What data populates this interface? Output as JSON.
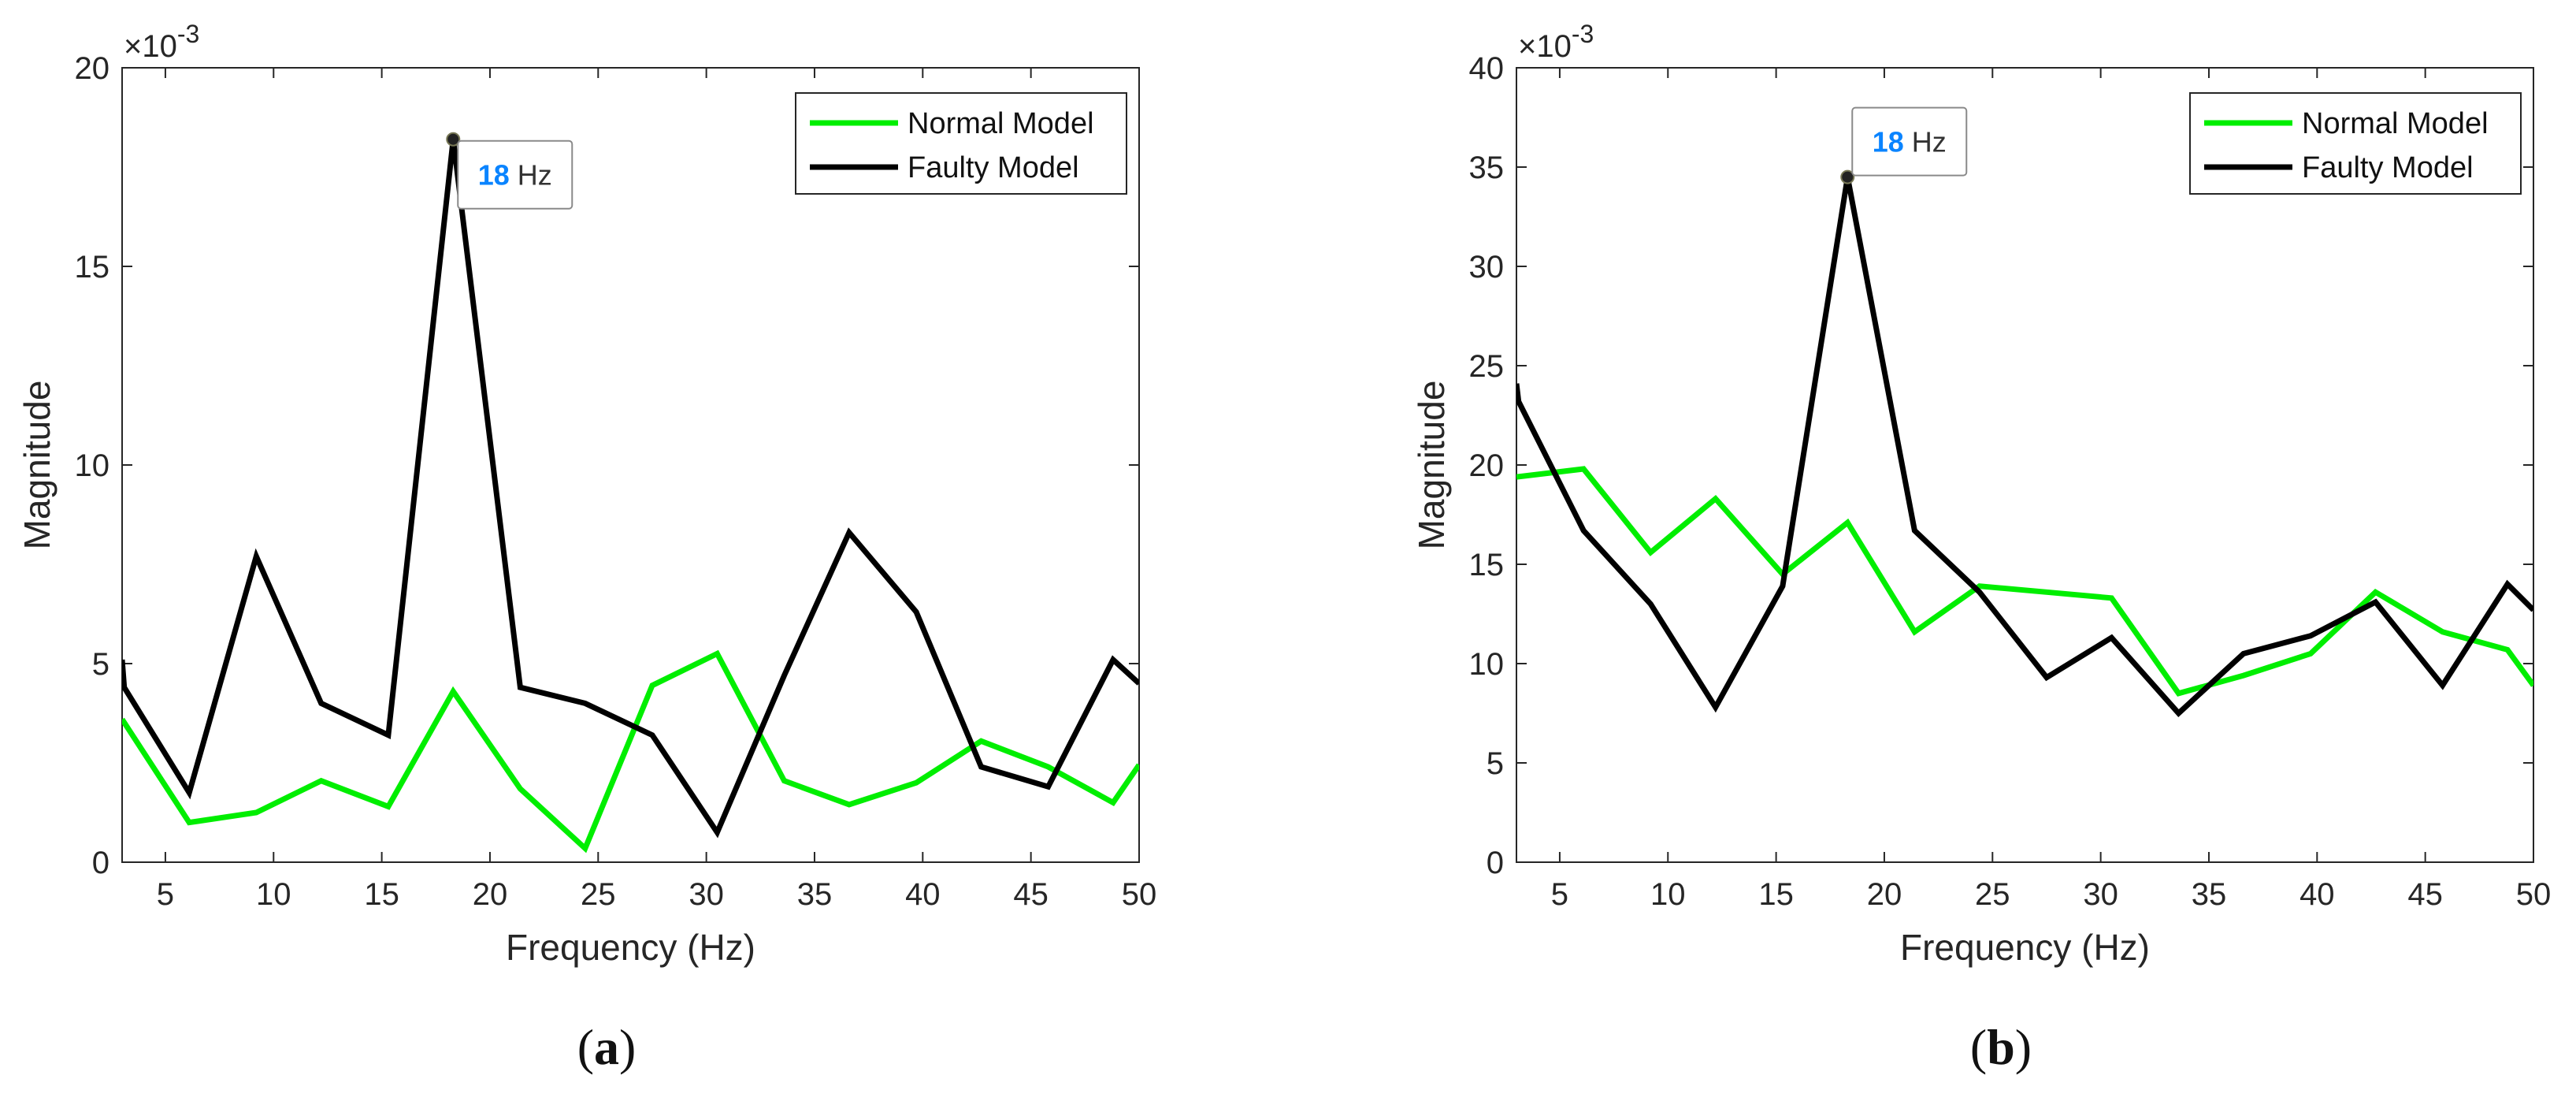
{
  "colors": {
    "normal": "#00ee00",
    "faulty": "#000000",
    "axis": "#262626",
    "tip_value": "#0a84ff"
  },
  "chart_data": [
    {
      "type": "line",
      "panel_label": "a",
      "xlabel": "Frequency (Hz)",
      "ylabel": "Magnitude",
      "exponent_base": "×10",
      "exponent_power": "-3",
      "xlim": [
        3,
        50
      ],
      "ylim": [
        0,
        20
      ],
      "xticks": [
        5,
        10,
        15,
        20,
        25,
        30,
        35,
        40,
        45,
        50
      ],
      "yticks": [
        0,
        5,
        10,
        15,
        20
      ],
      "legend_position": "top-right",
      "series": [
        {
          "name": "Normal Model",
          "color_key": "normal",
          "x": [
            3,
            6.1,
            9.2,
            12.2,
            15.3,
            18.3,
            21.4,
            24.4,
            27.5,
            30.5,
            33.6,
            36.6,
            39.7,
            42.7,
            45.8,
            48.8,
            50
          ],
          "y": [
            3.6,
            1.0,
            1.25,
            2.05,
            1.4,
            4.3,
            1.85,
            0.35,
            4.45,
            5.25,
            2.05,
            1.45,
            2.0,
            3.05,
            2.4,
            1.5,
            2.45
          ]
        },
        {
          "name": "Faulty Model",
          "color_key": "faulty",
          "x": [
            3,
            3.1,
            6.1,
            9.2,
            12.2,
            15.3,
            18.3,
            21.4,
            24.4,
            27.5,
            30.5,
            33.6,
            36.6,
            39.7,
            42.7,
            45.8,
            48.8,
            50
          ],
          "y": [
            5.1,
            4.4,
            1.75,
            7.7,
            4.0,
            3.2,
            18.2,
            4.4,
            4.0,
            3.2,
            0.75,
            4.7,
            8.3,
            6.3,
            2.4,
            1.9,
            5.1,
            4.5
          ]
        }
      ],
      "annotation": {
        "x": 18.3,
        "y": 18.2,
        "value": "18",
        "unit": "Hz"
      }
    },
    {
      "type": "line",
      "panel_label": "b",
      "xlabel": "Frequency (Hz)",
      "ylabel": "Magnitude",
      "exponent_base": "×10",
      "exponent_power": "-3",
      "xlim": [
        3,
        50
      ],
      "ylim": [
        0,
        40
      ],
      "xticks": [
        5,
        10,
        15,
        20,
        25,
        30,
        35,
        40,
        45,
        50
      ],
      "yticks": [
        0,
        5,
        10,
        15,
        20,
        25,
        30,
        35,
        40
      ],
      "legend_position": "top-right",
      "series": [
        {
          "name": "Normal Model",
          "color_key": "normal",
          "x": [
            3,
            6.1,
            9.2,
            12.2,
            15.3,
            18.3,
            21.4,
            24.4,
            27.5,
            30.5,
            33.6,
            36.6,
            39.7,
            42.7,
            45.8,
            48.8,
            50
          ],
          "y": [
            19.4,
            19.8,
            15.6,
            18.3,
            14.5,
            17.1,
            11.6,
            13.9,
            13.6,
            13.3,
            8.5,
            9.4,
            10.5,
            13.6,
            11.6,
            10.7,
            8.9
          ]
        },
        {
          "name": "Faulty Model",
          "color_key": "faulty",
          "x": [
            3,
            3.1,
            6.1,
            9.2,
            12.2,
            15.3,
            18.3,
            21.4,
            24.4,
            27.5,
            30.5,
            33.6,
            36.6,
            39.7,
            42.7,
            45.8,
            48.8,
            50
          ],
          "y": [
            24.1,
            23.2,
            16.7,
            13.0,
            7.8,
            13.9,
            34.5,
            16.7,
            13.6,
            9.3,
            11.3,
            7.5,
            10.5,
            11.4,
            13.1,
            8.9,
            14.0,
            12.7
          ]
        }
      ],
      "annotation": {
        "x": 18.3,
        "y": 34.5,
        "value": "18",
        "unit": "Hz"
      }
    }
  ]
}
